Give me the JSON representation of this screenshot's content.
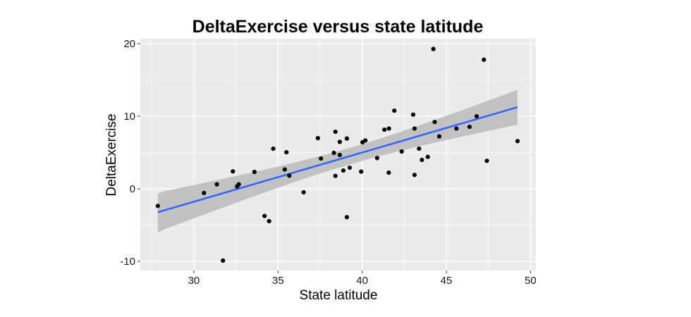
{
  "chart_data": {
    "type": "scatter",
    "title": "DeltaExercise versus state latitude",
    "xlabel": "State latitude",
    "ylabel": "DeltaExercise",
    "xlim": [
      26.82,
      50.32
    ],
    "ylim": [
      -11.26,
      20.68
    ],
    "x_ticks": [
      30,
      35,
      40,
      45,
      50
    ],
    "x_tick_labels": [
      "30",
      "35",
      "40",
      "45",
      "50"
    ],
    "x_minor_ticks": [
      27.5,
      32.5,
      37.5,
      42.5,
      47.5
    ],
    "y_ticks": [
      -10,
      0,
      10,
      20
    ],
    "y_tick_labels": [
      "-10",
      "0",
      "10",
      "20"
    ],
    "y_minor_ticks": [
      -5,
      5,
      15
    ],
    "grid": true,
    "legend": "none",
    "points": {
      "x": [
        27.86,
        30.6,
        31.37,
        31.73,
        32.32,
        32.57,
        32.67,
        33.6,
        34.2,
        34.47,
        34.72,
        35.4,
        35.5,
        35.67,
        36.52,
        37.37,
        37.55,
        38.32,
        38.41,
        38.41,
        38.67,
        38.67,
        38.88,
        39.09,
        39.09,
        39.26,
        39.94,
        40.02,
        40.19,
        40.89,
        41.32,
        41.58,
        41.59,
        41.91,
        42.35,
        43.03,
        43.11,
        43.11,
        43.38,
        43.55,
        43.9,
        44.23,
        44.31,
        44.58,
        45.6,
        46.38,
        46.8,
        47.23,
        47.41,
        49.23
      ],
      "y": [
        -2.36,
        -0.58,
        0.62,
        -9.89,
        2.4,
        0.33,
        0.62,
        2.33,
        -3.74,
        -4.46,
        5.53,
        2.66,
        5.04,
        1.81,
        -0.48,
        6.98,
        4.17,
        4.95,
        7.86,
        1.78,
        6.47,
        4.66,
        2.52,
        6.93,
        -3.91,
        2.91,
        2.37,
        6.42,
        6.66,
        4.24,
        8.15,
        2.23,
        8.31,
        10.77,
        5.14,
        10.22,
        8.31,
        1.91,
        5.53,
        3.98,
        4.4,
        19.27,
        9.21,
        7.22,
        8.31,
        8.54,
        9.99,
        17.79,
        3.85,
        6.57
      ]
    },
    "fit_line": {
      "method": "lm",
      "x_range": [
        27.86,
        49.23
      ],
      "y_at_range": [
        -3.23,
        11.25
      ]
    },
    "confidence_band": {
      "x": [
        27.86,
        49.23
      ],
      "lower": [
        -6.04,
        8.83
      ],
      "upper": [
        -0.64,
        13.65
      ],
      "center_x": 39.3,
      "half_width_at_center": 1.14
    },
    "colors": {
      "panel_background": "#EBEBEB",
      "grid": "#FFFFFF",
      "points": "#000000",
      "fit_line": "#3366FF",
      "band": "#C2C2C2"
    }
  }
}
